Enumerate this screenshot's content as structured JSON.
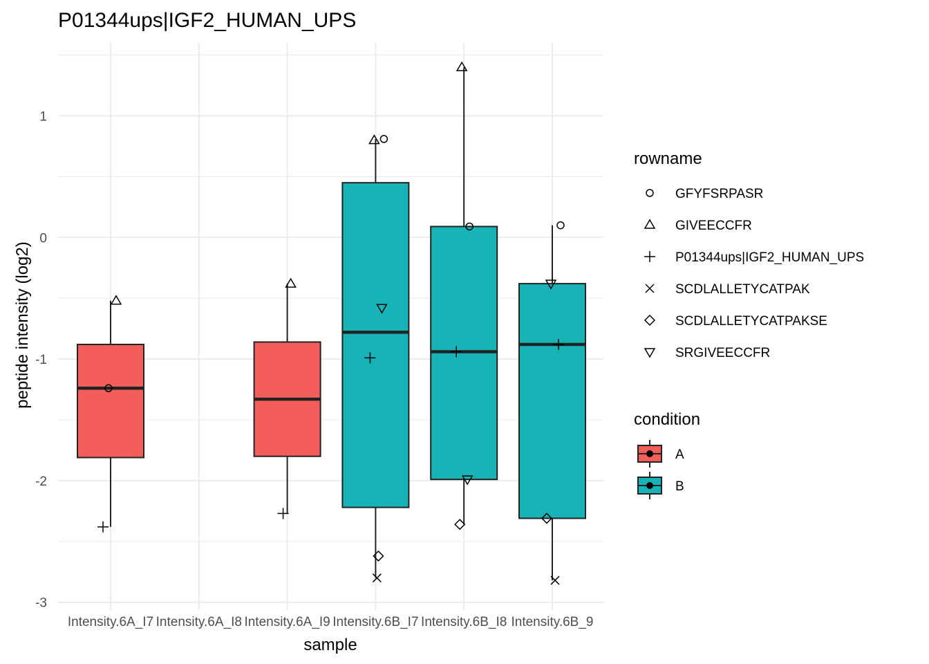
{
  "chart_data": {
    "type": "boxplot",
    "title": "P01344ups|IGF2_HUMAN_UPS",
    "xlabel": "sample",
    "ylabel": "peptide intensity (log2)",
    "ylim": [
      -3.0,
      1.5
    ],
    "yticks": [
      1,
      0,
      -1,
      -2,
      -3
    ],
    "ytick_labels": [
      "1",
      "0",
      "-1",
      "-2",
      "-3"
    ],
    "grid": true,
    "categories": [
      "Intensity.6A_I7",
      "Intensity.6A_I8",
      "Intensity.6A_I9",
      "Intensity.6B_I7",
      "Intensity.6B_I8",
      "Intensity.6B_9"
    ],
    "boxes": [
      {
        "category": "Intensity.6A_I7",
        "condition": "A",
        "whisker_low": -2.38,
        "q1": -1.81,
        "median": -1.24,
        "q3": -0.88,
        "whisker_high": -0.52
      },
      {
        "category": "Intensity.6A_I9",
        "condition": "A",
        "whisker_low": -2.27,
        "q1": -1.8,
        "median": -1.33,
        "q3": -0.86,
        "whisker_high": -0.38
      },
      {
        "category": "Intensity.6B_I7",
        "condition": "B",
        "whisker_low": -2.8,
        "q1": -2.22,
        "median": -0.78,
        "q3": 0.45,
        "whisker_high": 0.81
      },
      {
        "category": "Intensity.6B_I8",
        "condition": "B",
        "whisker_low": -2.36,
        "q1": -1.99,
        "median": -0.94,
        "q3": 0.09,
        "whisker_high": 1.4
      },
      {
        "category": "Intensity.6B_9",
        "condition": "B",
        "whisker_low": -2.82,
        "q1": -2.31,
        "median": -0.88,
        "q3": -0.38,
        "whisker_high": 0.1
      }
    ],
    "points": [
      {
        "category": "Intensity.6A_I7",
        "rowname": "GFYFSRPASR",
        "y": -1.24
      },
      {
        "category": "Intensity.6A_I7",
        "rowname": "GIVEECCFR",
        "y": -0.52
      },
      {
        "category": "Intensity.6A_I7",
        "rowname": "P01344ups|IGF2_HUMAN_UPS",
        "y": -2.38
      },
      {
        "category": "Intensity.6A_I9",
        "rowname": "GIVEECCFR",
        "y": -0.38
      },
      {
        "category": "Intensity.6A_I9",
        "rowname": "P01344ups|IGF2_HUMAN_UPS",
        "y": -2.27
      },
      {
        "category": "Intensity.6B_I7",
        "rowname": "GFYFSRPASR",
        "y": 0.81
      },
      {
        "category": "Intensity.6B_I7",
        "rowname": "GIVEECCFR",
        "y": 0.8
      },
      {
        "category": "Intensity.6B_I7",
        "rowname": "SRGIVEECCFR",
        "y": -0.58
      },
      {
        "category": "Intensity.6B_I7",
        "rowname": "P01344ups|IGF2_HUMAN_UPS",
        "y": -0.99
      },
      {
        "category": "Intensity.6B_I7",
        "rowname": "SCDLALLETYCATPAKSE",
        "y": -2.62
      },
      {
        "category": "Intensity.6B_I7",
        "rowname": "SCDLALLETYCATPAK",
        "y": -2.8
      },
      {
        "category": "Intensity.6B_I8",
        "rowname": "GIVEECCFR",
        "y": 1.4
      },
      {
        "category": "Intensity.6B_I8",
        "rowname": "GFYFSRPASR",
        "y": 0.09
      },
      {
        "category": "Intensity.6B_I8",
        "rowname": "P01344ups|IGF2_HUMAN_UPS",
        "y": -0.94
      },
      {
        "category": "Intensity.6B_I8",
        "rowname": "SRGIVEECCFR",
        "y": -1.99
      },
      {
        "category": "Intensity.6B_I8",
        "rowname": "SCDLALLETYCATPAKSE",
        "y": -2.36
      },
      {
        "category": "Intensity.6B_9",
        "rowname": "GFYFSRPASR",
        "y": 0.1
      },
      {
        "category": "Intensity.6B_9",
        "rowname": "SRGIVEECCFR",
        "y": -0.38
      },
      {
        "category": "Intensity.6B_9",
        "rowname": "P01344ups|IGF2_HUMAN_UPS",
        "y": -0.88
      },
      {
        "category": "Intensity.6B_9",
        "rowname": "SCDLALLETYCATPAKSE",
        "y": -2.31
      },
      {
        "category": "Intensity.6B_9",
        "rowname": "SCDLALLETYCATPAK",
        "y": -2.82
      }
    ],
    "legend_rowname": {
      "title": "rowname",
      "items": [
        {
          "label": "GFYFSRPASR",
          "shape": "circle"
        },
        {
          "label": "GIVEECCFR",
          "shape": "triangle-up"
        },
        {
          "label": "P01344ups|IGF2_HUMAN_UPS",
          "shape": "plus"
        },
        {
          "label": "SCDLALLETYCATPAK",
          "shape": "cross"
        },
        {
          "label": "SCDLALLETYCATPAKSE",
          "shape": "diamond"
        },
        {
          "label": "SRGIVEECCFR",
          "shape": "triangle-down"
        }
      ]
    },
    "legend_condition": {
      "title": "condition",
      "items": [
        {
          "label": "A",
          "color": "#F35E5A"
        },
        {
          "label": "B",
          "color": "#17B3B7"
        }
      ]
    },
    "legend_placement": "right",
    "colors": {
      "A": "#F35E5A",
      "B": "#17B3B7"
    }
  }
}
